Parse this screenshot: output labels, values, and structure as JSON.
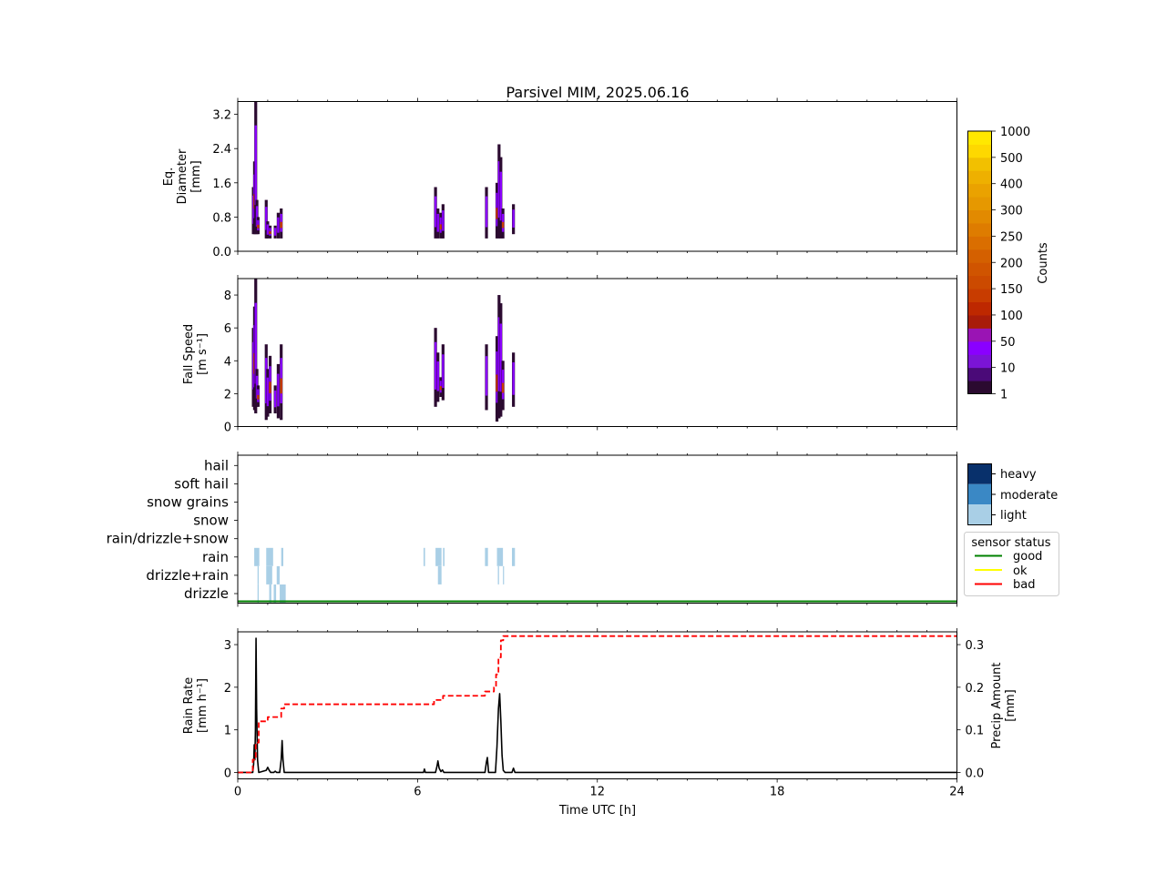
{
  "figure": {
    "title": "Parsivel MIM, 2025.06.16"
  },
  "chart_data": [
    {
      "type": "heatmap",
      "panel": "diameter",
      "ylabel_lines": [
        "Eq.",
        "Diameter",
        "[mm]"
      ],
      "xlim": [
        0,
        24
      ],
      "ylim": [
        0,
        3.5
      ],
      "yticks": [
        0.0,
        0.8,
        1.6,
        2.4,
        3.2
      ],
      "ytick_labels": [
        "0.0",
        "0.8",
        "1.6",
        "2.4",
        "3.2"
      ],
      "colorbar": {
        "label": "Counts",
        "tick_labels": [
          "1",
          "10",
          "50",
          "100",
          "150",
          "200",
          "250",
          "300",
          "400",
          "500",
          "1000"
        ],
        "colors": [
          "#2b0a30",
          "#4a0a78",
          "#7b14d6",
          "#8a00ff",
          "#9a14b4",
          "#a81c0a",
          "#be2800",
          "#c83c00",
          "#cc4a00",
          "#d05400",
          "#d46000",
          "#da6e00",
          "#de7c00",
          "#e28a00",
          "#e69800",
          "#eaa200",
          "#eeb000",
          "#f2c000",
          "#fed800",
          "#ffe800"
        ]
      },
      "events": [
        {
          "t": 0.52,
          "top": 1.5,
          "bottom": 0.4
        },
        {
          "t": 0.56,
          "top": 2.1,
          "bottom": 0.4
        },
        {
          "t": 0.6,
          "top": 3.5,
          "bottom": 0.4
        },
        {
          "t": 0.64,
          "top": 1.2,
          "bottom": 0.4
        },
        {
          "t": 0.68,
          "top": 0.8,
          "bottom": 0.4
        },
        {
          "t": 0.95,
          "top": 1.2,
          "bottom": 0.3
        },
        {
          "t": 1.0,
          "top": 0.7,
          "bottom": 0.3
        },
        {
          "t": 1.08,
          "top": 0.6,
          "bottom": 0.3
        },
        {
          "t": 1.25,
          "top": 0.6,
          "bottom": 0.3
        },
        {
          "t": 1.35,
          "top": 0.9,
          "bottom": 0.3
        },
        {
          "t": 1.45,
          "top": 1.0,
          "bottom": 0.3
        },
        {
          "t": 6.6,
          "top": 1.5,
          "bottom": 0.3
        },
        {
          "t": 6.68,
          "top": 1.0,
          "bottom": 0.3
        },
        {
          "t": 6.78,
          "top": 0.9,
          "bottom": 0.3
        },
        {
          "t": 6.85,
          "top": 1.1,
          "bottom": 0.3
        },
        {
          "t": 8.3,
          "top": 1.5,
          "bottom": 0.3
        },
        {
          "t": 8.65,
          "top": 1.6,
          "bottom": 0.3
        },
        {
          "t": 8.72,
          "top": 2.5,
          "bottom": 0.3
        },
        {
          "t": 8.78,
          "top": 2.2,
          "bottom": 0.3
        },
        {
          "t": 8.85,
          "top": 1.0,
          "bottom": 0.3
        },
        {
          "t": 9.2,
          "top": 1.1,
          "bottom": 0.4
        }
      ]
    },
    {
      "type": "heatmap",
      "panel": "fallspeed",
      "ylabel_lines": [
        "Fall Speed",
        "[m s⁻¹]"
      ],
      "xlim": [
        0,
        24
      ],
      "ylim": [
        0,
        9
      ],
      "yticks": [
        0,
        2,
        4,
        6,
        8
      ],
      "ytick_labels": [
        "0",
        "2",
        "4",
        "6",
        "8"
      ],
      "events": [
        {
          "t": 0.52,
          "top": 6.0,
          "bottom": 1.2
        },
        {
          "t": 0.56,
          "top": 7.3,
          "bottom": 1.0
        },
        {
          "t": 0.6,
          "top": 9.0,
          "bottom": 0.8
        },
        {
          "t": 0.64,
          "top": 3.5,
          "bottom": 1.2
        },
        {
          "t": 0.68,
          "top": 2.5,
          "bottom": 1.2
        },
        {
          "t": 0.95,
          "top": 5.0,
          "bottom": 0.4
        },
        {
          "t": 1.0,
          "top": 3.5,
          "bottom": 0.6
        },
        {
          "t": 1.08,
          "top": 4.3,
          "bottom": 0.8
        },
        {
          "t": 1.25,
          "top": 2.5,
          "bottom": 0.8
        },
        {
          "t": 1.35,
          "top": 3.8,
          "bottom": 0.5
        },
        {
          "t": 1.45,
          "top": 5.0,
          "bottom": 0.4
        },
        {
          "t": 6.6,
          "top": 6.0,
          "bottom": 1.2
        },
        {
          "t": 6.68,
          "top": 4.5,
          "bottom": 1.5
        },
        {
          "t": 6.78,
          "top": 3.0,
          "bottom": 1.8
        },
        {
          "t": 6.85,
          "top": 5.0,
          "bottom": 1.6
        },
        {
          "t": 8.3,
          "top": 5.0,
          "bottom": 1.0
        },
        {
          "t": 8.65,
          "top": 5.5,
          "bottom": 0.3
        },
        {
          "t": 8.72,
          "top": 8.0,
          "bottom": 0.5
        },
        {
          "t": 8.78,
          "top": 7.5,
          "bottom": 0.6
        },
        {
          "t": 8.85,
          "top": 4.0,
          "bottom": 1.0
        },
        {
          "t": 9.2,
          "top": 4.5,
          "bottom": 1.2
        }
      ]
    },
    {
      "type": "heatmap",
      "panel": "precip_type",
      "categories": [
        "drizzle",
        "drizzle+rain",
        "rain",
        "rain/drizzle+snow",
        "snow",
        "snow grains",
        "soft hail",
        "hail"
      ],
      "intensity_legend": {
        "labels": [
          "heavy",
          "moderate",
          "light"
        ],
        "colors": [
          "#08306b",
          "#3a88c5",
          "#a9cfe6"
        ]
      },
      "status_legend": {
        "title": "sensor status",
        "labels": [
          "good",
          "ok",
          "bad"
        ],
        "colors": [
          "#008000",
          "#ffff00",
          "#ff0000"
        ]
      },
      "events": [
        {
          "t0": 0.55,
          "t1": 0.72,
          "category": "rain",
          "intensity": "light"
        },
        {
          "t0": 0.66,
          "t1": 0.7,
          "category": "drizzle+rain",
          "intensity": "light"
        },
        {
          "t0": 0.66,
          "t1": 0.7,
          "category": "drizzle",
          "intensity": "light"
        },
        {
          "t0": 0.95,
          "t1": 1.18,
          "category": "rain",
          "intensity": "light"
        },
        {
          "t0": 0.95,
          "t1": 1.15,
          "category": "drizzle+rain",
          "intensity": "light"
        },
        {
          "t0": 1.05,
          "t1": 1.12,
          "category": "drizzle",
          "intensity": "light"
        },
        {
          "t0": 1.3,
          "t1": 1.4,
          "category": "drizzle+rain",
          "intensity": "light"
        },
        {
          "t0": 1.2,
          "t1": 1.28,
          "category": "drizzle",
          "intensity": "light"
        },
        {
          "t0": 1.45,
          "t1": 1.52,
          "category": "rain",
          "intensity": "light"
        },
        {
          "t0": 1.4,
          "t1": 1.6,
          "category": "drizzle",
          "intensity": "light"
        },
        {
          "t0": 6.2,
          "t1": 6.25,
          "category": "rain",
          "intensity": "light"
        },
        {
          "t0": 6.6,
          "t1": 6.8,
          "category": "rain",
          "intensity": "light"
        },
        {
          "t0": 6.68,
          "t1": 6.8,
          "category": "drizzle+rain",
          "intensity": "light"
        },
        {
          "t0": 6.85,
          "t1": 6.9,
          "category": "rain",
          "intensity": "light"
        },
        {
          "t0": 8.25,
          "t1": 8.35,
          "category": "rain",
          "intensity": "light"
        },
        {
          "t0": 8.65,
          "t1": 8.85,
          "category": "rain",
          "intensity": "light"
        },
        {
          "t0": 8.68,
          "t1": 8.72,
          "category": "drizzle+rain",
          "intensity": "light"
        },
        {
          "t0": 8.85,
          "t1": 8.88,
          "category": "drizzle+rain",
          "intensity": "light"
        },
        {
          "t0": 9.15,
          "t1": 9.25,
          "category": "rain",
          "intensity": "light"
        }
      ],
      "status_series": [
        {
          "name": "good",
          "t": [
            0,
            24
          ]
        }
      ]
    },
    {
      "type": "line",
      "panel": "rain",
      "xlabel": "Time UTC [h]",
      "xticks": [
        0,
        6,
        12,
        18,
        24
      ],
      "xtick_labels": [
        "0",
        "6",
        "12",
        "18",
        "24"
      ],
      "xlim": [
        0,
        24
      ],
      "ylabel_lines": [
        "Rain Rate",
        "[mm h⁻¹]"
      ],
      "ylim": [
        -0.15,
        3.3
      ],
      "yticks": [
        0,
        1,
        2,
        3
      ],
      "ytick_labels": [
        "0",
        "1",
        "2",
        "3"
      ],
      "y2label_lines": [
        "Precip Amount",
        "[mm]"
      ],
      "y2lim": [
        -0.015,
        0.33
      ],
      "y2ticks": [
        0.0,
        0.1,
        0.2,
        0.3
      ],
      "y2tick_labels": [
        "0.0",
        "0.1",
        "0.2",
        "0.3"
      ],
      "series": [
        {
          "style": "solid",
          "color": "#000000",
          "x": [
            0,
            0.5,
            0.53,
            0.55,
            0.57,
            0.59,
            0.61,
            0.63,
            0.66,
            0.7,
            0.95,
            1.0,
            1.05,
            1.1,
            1.2,
            1.25,
            1.3,
            1.4,
            1.45,
            1.48,
            1.51,
            1.55,
            1.6,
            6.2,
            6.23,
            6.26,
            6.6,
            6.65,
            6.68,
            6.72,
            6.78,
            6.83,
            6.88,
            8.25,
            8.3,
            8.33,
            8.37,
            8.6,
            8.65,
            8.7,
            8.74,
            8.78,
            8.82,
            8.86,
            8.92,
            9.15,
            9.2,
            9.25,
            24
          ],
          "y": [
            0,
            0,
            0.2,
            0.65,
            0.3,
            1.0,
            3.15,
            1.5,
            0.3,
            0,
            0.05,
            0.12,
            0.05,
            0,
            0,
            0.03,
            0,
            0,
            0.3,
            0.75,
            0.3,
            0,
            0,
            0,
            0.08,
            0,
            0,
            0.15,
            0.27,
            0.1,
            0.02,
            0.06,
            0,
            0,
            0.25,
            0.35,
            0,
            0,
            0.6,
            1.5,
            1.85,
            1.2,
            0.4,
            0.05,
            0,
            0,
            0.1,
            0,
            0
          ]
        },
        {
          "style": "dashed",
          "color": "#ff0000",
          "axis": "y2",
          "x": [
            0,
            0.5,
            0.5,
            0.6,
            0.6,
            0.7,
            0.7,
            1.0,
            1.0,
            1.3,
            1.3,
            1.45,
            1.45,
            1.55,
            1.55,
            6.55,
            6.55,
            6.7,
            6.7,
            6.85,
            6.85,
            8.25,
            8.25,
            8.55,
            8.55,
            8.62,
            8.62,
            8.7,
            8.7,
            8.78,
            8.78,
            8.86,
            8.86,
            24
          ],
          "y": [
            0,
            0,
            0.03,
            0.03,
            0.07,
            0.07,
            0.12,
            0.12,
            0.13,
            0.13,
            0.13,
            0.13,
            0.15,
            0.15,
            0.16,
            0.16,
            0.17,
            0.17,
            0.17,
            0.17,
            0.18,
            0.18,
            0.19,
            0.19,
            0.2,
            0.2,
            0.23,
            0.23,
            0.27,
            0.27,
            0.31,
            0.31,
            0.32,
            0.32
          ]
        }
      ]
    }
  ]
}
